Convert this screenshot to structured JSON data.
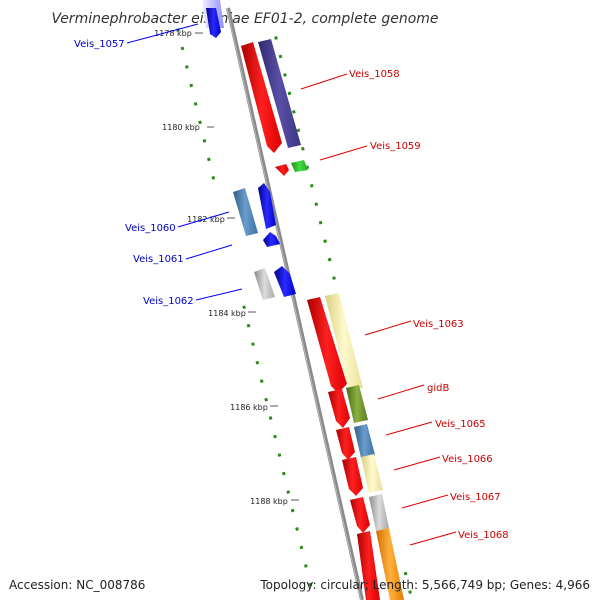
{
  "title": "Verminephrobacter eiseniae EF01-2, complete genome",
  "accession": "Accession: NC_008786",
  "topology": "Topology: circular; Length: 5,566,749 bp; Genes: 4,966",
  "colors": {
    "backbone": "#8a8a8a",
    "tick": "#2a8a1a",
    "label_forward": "#0000cc",
    "label_reverse": "#cc0000",
    "leader_forward": "#0000ff",
    "leader_reverse": "#dd0000"
  },
  "ticks": [
    "1178 kbp",
    "1180 kbp",
    "1182 kbp",
    "1184 kbp",
    "1186 kbp",
    "1188 kbp"
  ],
  "genes": [
    {
      "label": "Veis_1057",
      "strand": "forward"
    },
    {
      "label": "Veis_1058",
      "strand": "reverse"
    },
    {
      "label": "Veis_1059",
      "strand": "reverse"
    },
    {
      "label": "Veis_1060",
      "strand": "forward"
    },
    {
      "label": "Veis_1061",
      "strand": "forward"
    },
    {
      "label": "Veis_1062",
      "strand": "forward"
    },
    {
      "label": "Veis_1063",
      "strand": "reverse"
    },
    {
      "label": "gidB",
      "strand": "reverse"
    },
    {
      "label": "Veis_1065",
      "strand": "reverse"
    },
    {
      "label": "Veis_1066",
      "strand": "reverse"
    },
    {
      "label": "Veis_1067",
      "strand": "reverse"
    },
    {
      "label": "Veis_1068",
      "strand": "reverse"
    }
  ]
}
